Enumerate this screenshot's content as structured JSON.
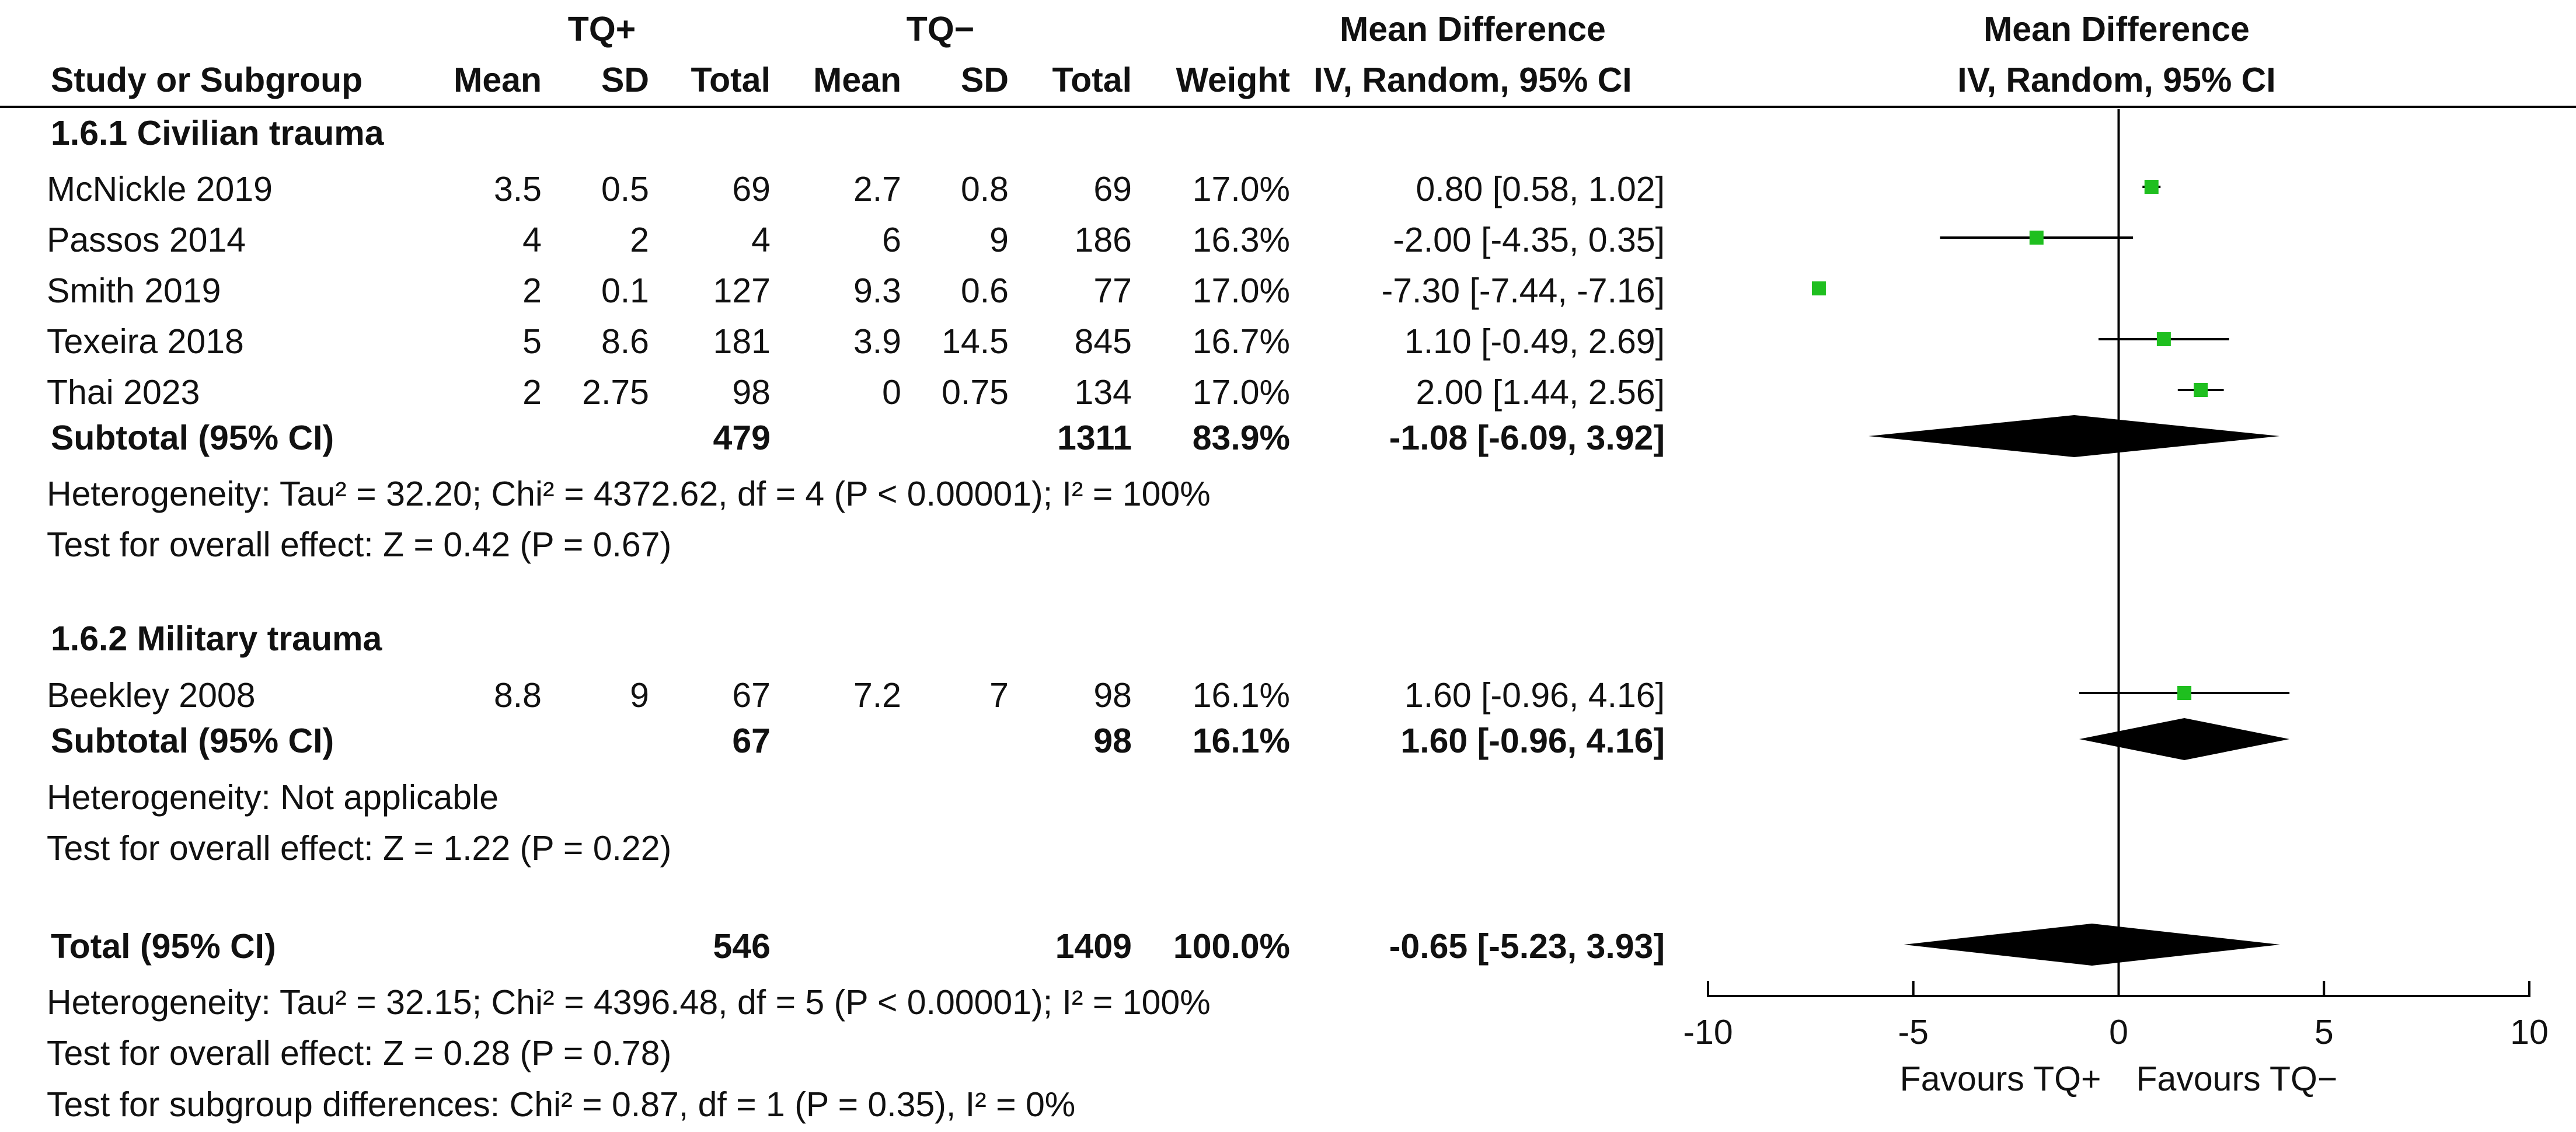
{
  "header": {
    "group1": "TQ+",
    "group2": "TQ−",
    "md_title": "Mean Difference",
    "md_method": "IV, Random, 95% CI",
    "plot_title": "Mean Difference",
    "plot_method": "IV, Random, 95% CI",
    "col_study": "Study or Subgroup",
    "col_mean1": "Mean",
    "col_sd1": "SD",
    "col_total1": "Total",
    "col_mean2": "Mean",
    "col_sd2": "SD",
    "col_total2": "Total",
    "col_weight": "Weight"
  },
  "subgroups": [
    {
      "title": "1.6.1 Civilian trauma",
      "studies": [
        {
          "study": "McNickle 2019",
          "mean1": "3.5",
          "sd1": "0.5",
          "total1": "69",
          "mean2": "2.7",
          "sd2": "0.8",
          "total2": "69",
          "weight": "17.0%",
          "ci": "0.80 [0.58, 1.02]"
        },
        {
          "study": "Passos 2014",
          "mean1": "4",
          "sd1": "2",
          "total1": "4",
          "mean2": "6",
          "sd2": "9",
          "total2": "186",
          "weight": "16.3%",
          "ci": "-2.00 [-4.35, 0.35]"
        },
        {
          "study": "Smith 2019",
          "mean1": "2",
          "sd1": "0.1",
          "total1": "127",
          "mean2": "9.3",
          "sd2": "0.6",
          "total2": "77",
          "weight": "17.0%",
          "ci": "-7.30 [-7.44, -7.16]"
        },
        {
          "study": "Texeira 2018",
          "mean1": "5",
          "sd1": "8.6",
          "total1": "181",
          "mean2": "3.9",
          "sd2": "14.5",
          "total2": "845",
          "weight": "16.7%",
          "ci": "1.10 [-0.49, 2.69]"
        },
        {
          "study": "Thai 2023",
          "mean1": "2",
          "sd1": "2.75",
          "total1": "98",
          "mean2": "0",
          "sd2": "0.75",
          "total2": "134",
          "weight": "17.0%",
          "ci": "2.00 [1.44, 2.56]"
        }
      ],
      "subtotal": {
        "label": "Subtotal (95% CI)",
        "total1": "479",
        "total2": "1311",
        "weight": "83.9%",
        "ci": "-1.08 [-6.09, 3.92]"
      },
      "heterogeneity": "Heterogeneity: Tau² = 32.20; Chi² = 4372.62, df = 4 (P < 0.00001); I² = 100%",
      "overall": "Test for overall effect: Z = 0.42 (P = 0.67)"
    },
    {
      "title": "1.6.2 Military trauma",
      "studies": [
        {
          "study": "Beekley 2008",
          "mean1": "8.8",
          "sd1": "9",
          "total1": "67",
          "mean2": "7.2",
          "sd2": "7",
          "total2": "98",
          "weight": "16.1%",
          "ci": "1.60 [-0.96, 4.16]"
        }
      ],
      "subtotal": {
        "label": "Subtotal (95% CI)",
        "total1": "67",
        "total2": "98",
        "weight": "16.1%",
        "ci": "1.60 [-0.96, 4.16]"
      },
      "heterogeneity": "Heterogeneity: Not applicable",
      "overall": "Test for overall effect: Z = 1.22 (P = 0.22)"
    }
  ],
  "total": {
    "label": "Total (95% CI)",
    "total1": "546",
    "total2": "1409",
    "weight": "100.0%",
    "ci": "-0.65 [-5.23, 3.93]",
    "heterogeneity": "Heterogeneity: Tau² = 32.15; Chi² = 4396.48, df = 5 (P < 0.00001); I² = 100%",
    "overall": "Test for overall effect: Z = 0.28 (P = 0.78)",
    "subgroup_diff": "Test for subgroup differences: Chi² = 0.87, df = 1 (P = 0.35), I² = 0%"
  },
  "colors": {
    "square": "#1fbf1f",
    "diamond": "#000000",
    "text": "#111111"
  },
  "chart_data": {
    "type": "forest",
    "xlim": [
      -10,
      10
    ],
    "ticks": [
      -10,
      -5,
      0,
      5,
      10
    ],
    "tick_labels": [
      "-10",
      "-5",
      "0",
      "5",
      "10"
    ],
    "favours_left": "Favours TQ+",
    "favours_right": "Favours TQ−",
    "studies": [
      {
        "study": "McNickle 2019",
        "md": 0.8,
        "lo": 0.58,
        "hi": 1.02,
        "weight": 17.0
      },
      {
        "study": "Passos 2014",
        "md": -2.0,
        "lo": -4.35,
        "hi": 0.35,
        "weight": 16.3
      },
      {
        "study": "Smith 2019",
        "md": -7.3,
        "lo": -7.44,
        "hi": -7.16,
        "weight": 17.0
      },
      {
        "study": "Texeira 2018",
        "md": 1.1,
        "lo": -0.49,
        "hi": 2.69,
        "weight": 16.7
      },
      {
        "study": "Thai 2023",
        "md": 2.0,
        "lo": 1.44,
        "hi": 2.56,
        "weight": 17.0
      },
      {
        "study": "Beekley 2008",
        "md": 1.6,
        "lo": -0.96,
        "hi": 4.16,
        "weight": 16.1
      }
    ],
    "pooled": [
      {
        "label": "Subtotal 1.6.1",
        "md": -1.08,
        "lo": -6.09,
        "hi": 3.92
      },
      {
        "label": "Subtotal 1.6.2",
        "md": 1.6,
        "lo": -0.96,
        "hi": 4.16
      },
      {
        "label": "Total",
        "md": -0.65,
        "lo": -5.23,
        "hi": 3.93
      }
    ]
  }
}
